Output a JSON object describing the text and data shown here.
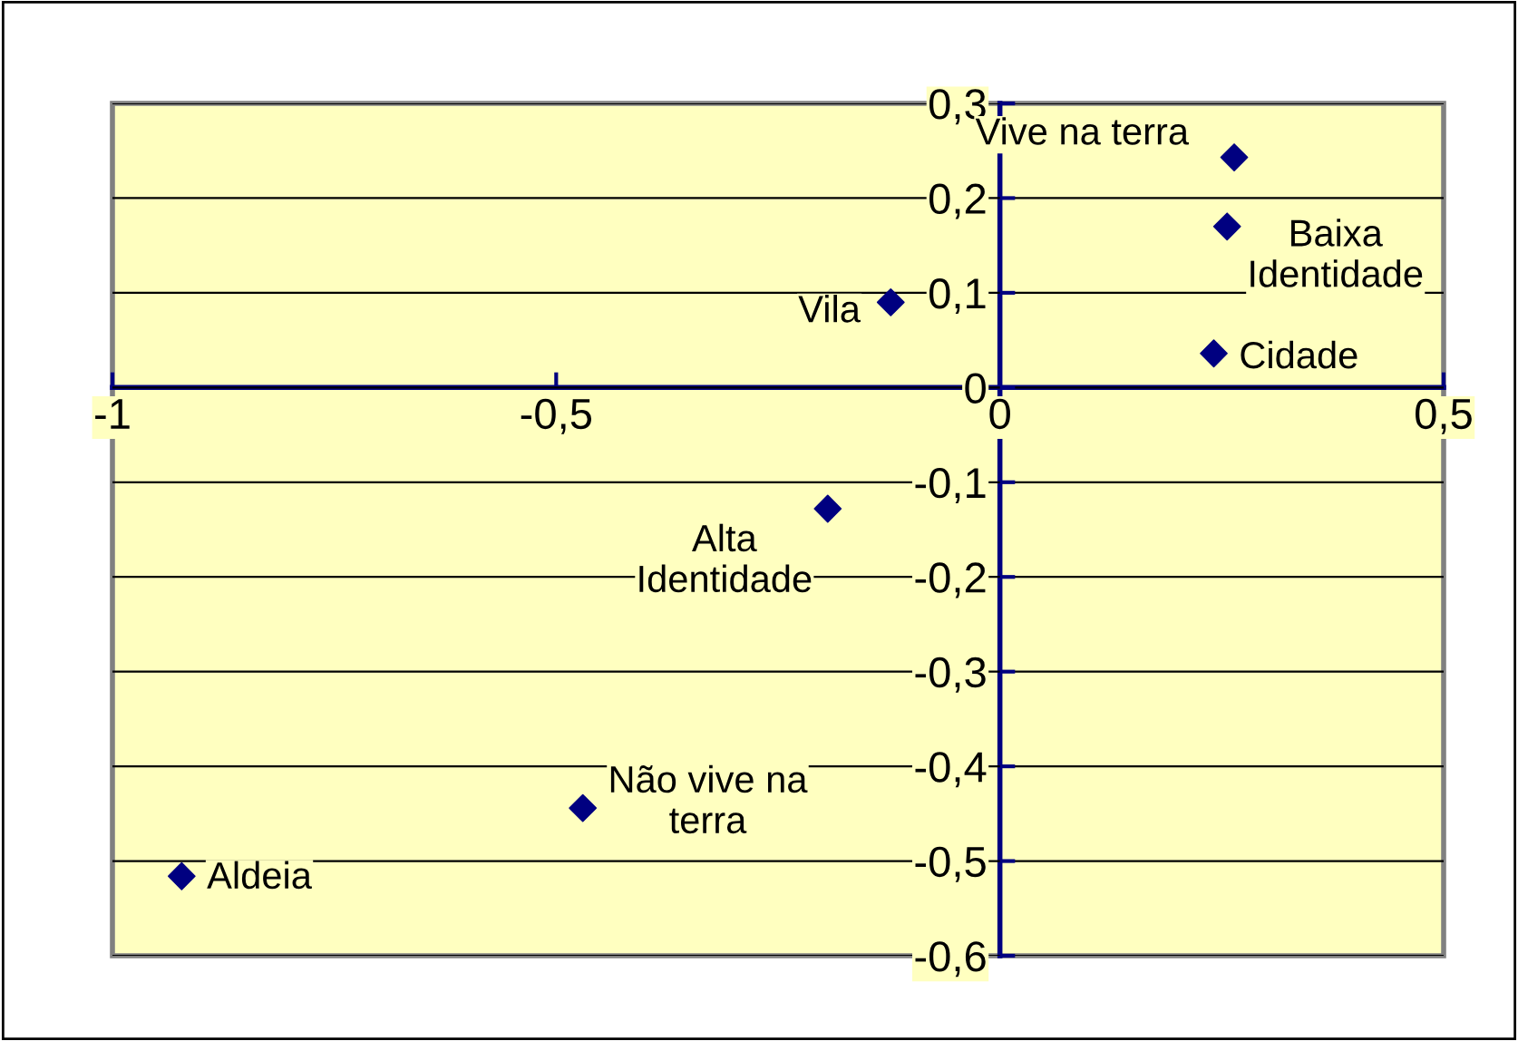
{
  "chart_data": {
    "type": "scatter",
    "x": [
      0.264,
      0.256,
      0.241,
      -0.123,
      -0.194,
      -0.47,
      -0.922
    ],
    "series": [
      {
        "color": "#000080",
        "values": [
          0.243,
          0.17,
          0.036,
          0.09,
          -0.128,
          -0.444,
          -0.516
        ]
      }
    ],
    "marker": "diamond",
    "xlim": [
      -1,
      0.5
    ],
    "xticks": [
      {
        "value": -1,
        "label": "-1"
      },
      {
        "value": -0.5,
        "label": "-0,5"
      },
      {
        "value": 0,
        "label": "0"
      },
      {
        "value": 0.5,
        "label": "0,5"
      }
    ],
    "ylim": [
      -0.6,
      0.3
    ],
    "yticks": [
      {
        "value": -0.6,
        "label": "-0,6"
      },
      {
        "value": -0.5,
        "label": "-0,5"
      },
      {
        "value": -0.4,
        "label": "-0,4"
      },
      {
        "value": -0.3,
        "label": "-0,3"
      },
      {
        "value": -0.2,
        "label": "-0,2"
      },
      {
        "value": -0.1,
        "label": "-0,1"
      },
      {
        "value": 0,
        "label": "0"
      },
      {
        "value": 0.1,
        "label": "0,1"
      },
      {
        "value": 0.2,
        "label": "0,2"
      },
      {
        "value": 0.3,
        "label": "0,3"
      }
    ],
    "grid": "y",
    "annotations": [
      {
        "text": "Vive na terra",
        "x": 0.264,
        "y": 0.243
      },
      {
        "text": "Baixa\nIdentidade",
        "x": 0.256,
        "y": 0.17
      },
      {
        "text": "Cidade",
        "x": 0.241,
        "y": 0.036
      },
      {
        "text": "Vila",
        "x": -0.123,
        "y": 0.09
      },
      {
        "text": "Alta\nIdentidade",
        "x": -0.194,
        "y": -0.128
      },
      {
        "text": "Não vive na\nterra",
        "x": -0.47,
        "y": -0.444
      },
      {
        "text": "Aldeia",
        "x": -0.922,
        "y": -0.516
      }
    ]
  }
}
